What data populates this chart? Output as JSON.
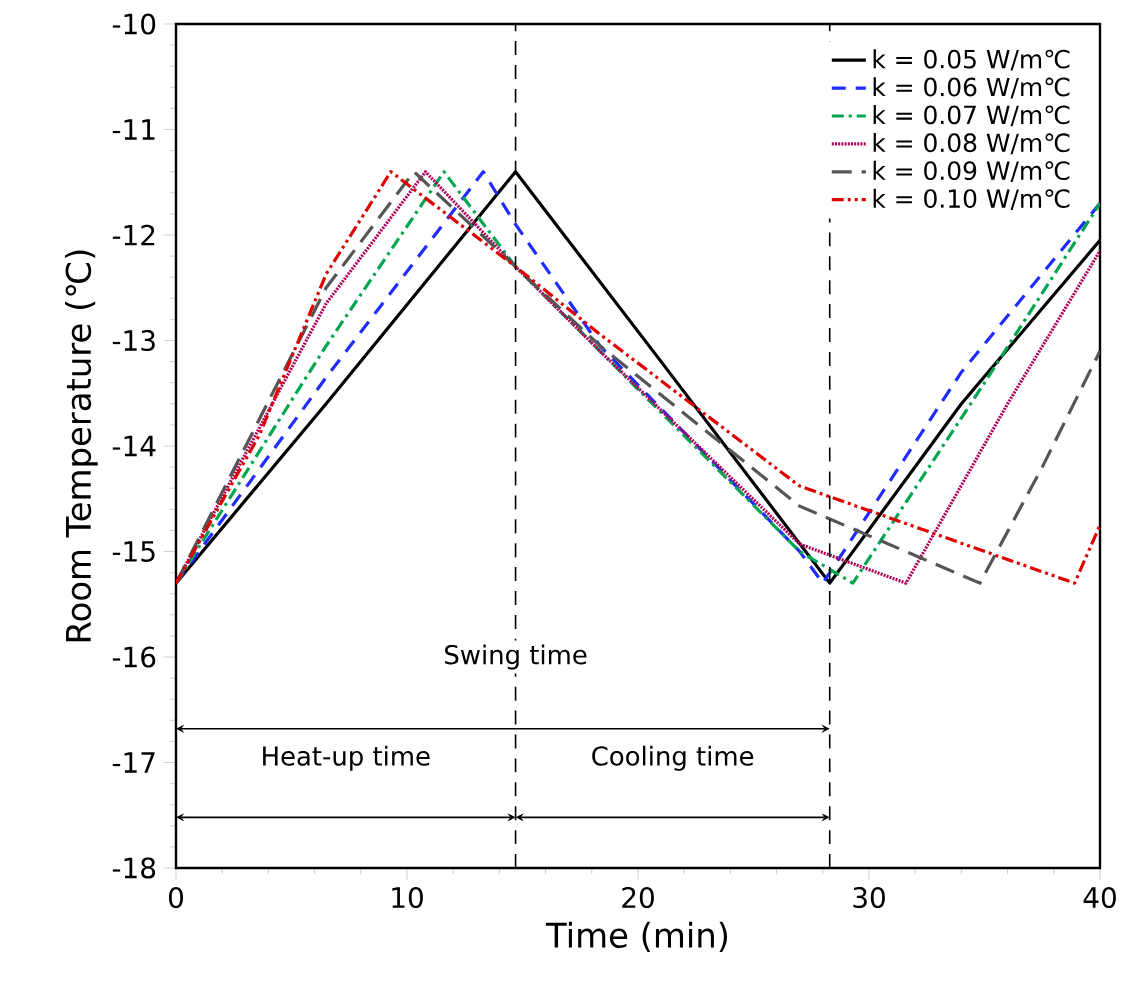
{
  "chart_data": {
    "type": "line",
    "xlabel": "Time (min)",
    "ylabel": "Room Temperature (℃)",
    "xlim": [
      0,
      40
    ],
    "ylim": [
      -18,
      -10
    ],
    "xticks": [
      0,
      10,
      20,
      30,
      40
    ],
    "yticks": [
      -18,
      -17,
      -16,
      -15,
      -14,
      -13,
      -12,
      -11,
      -10
    ],
    "legend": "top right",
    "grid": false,
    "series": [
      {
        "name": "k = 0.05 W/m℃",
        "color": "#000000",
        "line_style": "solid",
        "x": [
          0,
          6.5,
          14.7,
          21,
          28.3,
          34,
          40
        ],
        "values": [
          -15.3,
          -13.6,
          -11.4,
          -13.2,
          -15.3,
          -13.6,
          -12.05
        ]
      },
      {
        "name": "k = 0.06 W/m℃",
        "color": "#1f2bff",
        "line_style": "dashed",
        "x": [
          0,
          6.5,
          13.3,
          14.7,
          18.35,
          27,
          28.0,
          34,
          40
        ],
        "values": [
          -15.3,
          -13.35,
          -11.4,
          -11.9,
          -13.05,
          -15.0,
          -15.3,
          -13.3,
          -11.7
        ]
      },
      {
        "name": "k = 0.07 W/m℃",
        "color": "#00a550",
        "line_style": "dashdot",
        "x": [
          0,
          6.5,
          11.6,
          14.7,
          18.35,
          27,
          29.3,
          35,
          40
        ],
        "values": [
          -15.3,
          -13.05,
          -11.4,
          -12.3,
          -13.1,
          -15.0,
          -15.3,
          -13.4,
          -11.7
        ]
      },
      {
        "name": "k = 0.08 W/m℃",
        "color": "#b0005a",
        "line_style": "dotted",
        "x": [
          0,
          6.5,
          10.8,
          14.7,
          18.35,
          27,
          31.6,
          36,
          40
        ],
        "values": [
          -15.3,
          -12.65,
          -11.4,
          -12.3,
          -13.1,
          -14.93,
          -15.3,
          -13.6,
          -12.15
        ]
      },
      {
        "name": "k = 0.09 W/m℃",
        "color": "#555555",
        "line_style": "longdashed",
        "x": [
          0,
          6.5,
          10.3,
          14.7,
          18.35,
          27,
          34.8,
          37.5,
          40
        ],
        "values": [
          -15.3,
          -12.5,
          -11.4,
          -12.3,
          -13.05,
          -14.57,
          -15.3,
          -14.2,
          -13.1
        ]
      },
      {
        "name": "k = 0.10 W/m℃",
        "color": "#e00000",
        "line_style": "dashdotdot",
        "x": [
          0,
          3.6,
          6.5,
          9.3,
          14.7,
          18.35,
          27,
          38.9,
          40
        ],
        "values": [
          -15.3,
          -13.9,
          -12.37,
          -11.4,
          -12.3,
          -12.94,
          -14.38,
          -15.3,
          -14.75
        ]
      }
    ],
    "ref_lines": [
      {
        "axis": "x",
        "value": 14.7,
        "line_style": "dashed"
      },
      {
        "axis": "x",
        "value": 28.3,
        "line_style": "dashed"
      }
    ],
    "annotations": [
      "Swing time",
      "Heat-up time",
      "Cooling time"
    ]
  }
}
